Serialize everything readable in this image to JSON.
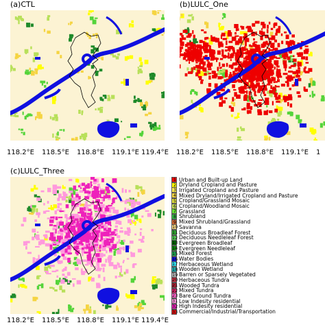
{
  "panels": [
    {
      "id": "ctl",
      "label": "(a)CTL"
    },
    {
      "id": "lulc-one",
      "label": "(b)LULC_One"
    },
    {
      "id": "lulc-three",
      "label": "(c)LULC_Three"
    }
  ],
  "x_ticks": [
    "118.2°E",
    "118.5°E",
    "118.8°E",
    "119.1°E",
    "119.4°E"
  ],
  "cut_off_tick": "1",
  "colors": {
    "background": "#fcf3d3",
    "urban": "#ee0000",
    "dryland_cropland": "#ffff00",
    "irrigated_cropland": "#f5d442",
    "cropland_grassland": "#b8e05a",
    "grassland": "#55d43a",
    "forest": "#1f8a2a",
    "water": "#1010e0",
    "low_intensity_residential": "#ff99dd",
    "high_intensity_residential": "#ee22bb",
    "boundary": "#000000"
  },
  "legend": [
    {
      "num": "1",
      "label": "Urban and Built-up Land",
      "color": "#ee0000"
    },
    {
      "num": "2",
      "label": "Dryland Cropland and Pasture",
      "color": "#ffff00"
    },
    {
      "num": "3",
      "label": "Irrigated Cropland and Pasture",
      "color": "#ffee55"
    },
    {
      "num": "4",
      "label": "Mixed Dryland/Irrigated Cropland and Pasture",
      "color": "#f5d442"
    },
    {
      "num": "5",
      "label": "Cropland/Grassland Mosaic",
      "color": "#e0e040"
    },
    {
      "num": "6",
      "label": "Cropland/Woodland Mosaic",
      "color": "#c8e05a"
    },
    {
      "num": "7",
      "label": "Grassland",
      "color": "#66dd33"
    },
    {
      "num": "8",
      "label": "Shrubland",
      "color": "#33bb44"
    },
    {
      "num": "9",
      "label": "Mixed Shrubland/Grassland",
      "color": "#cc6633"
    },
    {
      "num": "10",
      "label": "Savanna",
      "color": "#ffdd88"
    },
    {
      "num": "11",
      "label": "Deciduous Broadleaf Forest",
      "color": "#33aa33"
    },
    {
      "num": "12",
      "label": "Deciduous Needleleaf Forest",
      "color": "#55cc55"
    },
    {
      "num": "13",
      "label": "Evergreen Broadleaf",
      "color": "#006600"
    },
    {
      "num": "14",
      "label": "Evergreen Needleleaf",
      "color": "#118811"
    },
    {
      "num": "15",
      "label": "Mixed Forest",
      "color": "#22aa55"
    },
    {
      "num": "16",
      "label": "Water Bodies",
      "color": "#1010e0"
    },
    {
      "num": "17",
      "label": "Herbaceous Wetland",
      "color": "#33ddee"
    },
    {
      "num": "18",
      "label": "Wooden Wetland",
      "color": "#22bbbb"
    },
    {
      "num": "19",
      "label": "Barren or Sparsely Vegetated",
      "color": "#bbbbbb"
    },
    {
      "num": "20",
      "label": "Herbaceous Tundra",
      "color": "#cc3344"
    },
    {
      "num": "21",
      "label": "Wooded Tundra",
      "color": "#aa2233"
    },
    {
      "num": "22",
      "label": "Mixed Tundra",
      "color": "#dd2266"
    },
    {
      "num": "23",
      "label": "Bare Ground Tundra",
      "color": "#ff66cc"
    },
    {
      "num": "31",
      "label": "Low Indesity residential",
      "color": "#ff99dd"
    },
    {
      "num": "32",
      "label": "High Indesity residential",
      "color": "#ee22bb"
    },
    {
      "num": "33",
      "label": "Commercial/Industrial/Transportation",
      "color": "#dd1111"
    }
  ]
}
